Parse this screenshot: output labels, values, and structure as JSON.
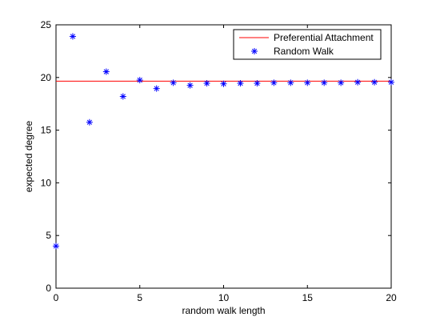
{
  "chart_data": {
    "type": "scatter",
    "xlabel": "random walk length",
    "ylabel": "expected degree",
    "xlim": [
      0,
      20
    ],
    "ylim": [
      0,
      25
    ],
    "xticks": [
      0,
      5,
      10,
      15,
      20
    ],
    "yticks": [
      0,
      5,
      10,
      15,
      20,
      25
    ],
    "grid": false,
    "legend_position": "top-right",
    "series": [
      {
        "name": "Preferential Attachment",
        "type": "line",
        "color": "#ff0000",
        "x": [
          0,
          20
        ],
        "y": [
          19.65,
          19.65
        ]
      },
      {
        "name": "Random Walk",
        "type": "scatter",
        "marker": "asterisk",
        "color": "#0000ff",
        "x": [
          0,
          1,
          2,
          3,
          4,
          5,
          6,
          7,
          8,
          9,
          10,
          11,
          12,
          13,
          14,
          15,
          16,
          17,
          18,
          19,
          20
        ],
        "y": [
          4.0,
          23.9,
          15.75,
          20.55,
          18.2,
          19.75,
          18.95,
          19.5,
          19.25,
          19.45,
          19.4,
          19.45,
          19.45,
          19.5,
          19.5,
          19.5,
          19.5,
          19.5,
          19.55,
          19.55,
          19.55
        ]
      }
    ]
  }
}
